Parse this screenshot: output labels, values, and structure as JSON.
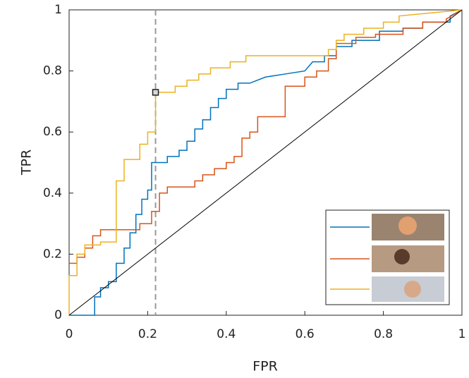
{
  "chart_data": {
    "type": "line",
    "xlabel": "FPR",
    "ylabel": "TPR",
    "xlim": [
      0,
      1
    ],
    "ylim": [
      0,
      1
    ],
    "xticks": [
      0,
      0.2,
      0.4,
      0.6,
      0.8,
      1
    ],
    "yticks": [
      0,
      0.2,
      0.4,
      0.6,
      0.8,
      1
    ],
    "vline": 0.22,
    "marker": {
      "x": 0.22,
      "y": 0.73
    },
    "series": [
      {
        "color": "#0072bd",
        "x": [
          0,
          0.065,
          0.065,
          0.08,
          0.08,
          0.1,
          0.1,
          0.12,
          0.12,
          0.14,
          0.14,
          0.155,
          0.155,
          0.17,
          0.17,
          0.185,
          0.185,
          0.2,
          0.2,
          0.21,
          0.21,
          0.25,
          0.25,
          0.28,
          0.28,
          0.3,
          0.3,
          0.32,
          0.32,
          0.34,
          0.34,
          0.36,
          0.36,
          0.38,
          0.38,
          0.4,
          0.4,
          0.43,
          0.43,
          0.46,
          0.5,
          0.55,
          0.6,
          0.62,
          0.65,
          0.65,
          0.68,
          0.68,
          0.72,
          0.72,
          0.79,
          0.79,
          0.85,
          0.85,
          0.9,
          0.9,
          0.97,
          0.97,
          1
        ],
        "values": [
          0,
          0,
          0.06,
          0.06,
          0.09,
          0.09,
          0.11,
          0.11,
          0.17,
          0.17,
          0.22,
          0.22,
          0.27,
          0.27,
          0.33,
          0.33,
          0.38,
          0.38,
          0.41,
          0.41,
          0.5,
          0.5,
          0.52,
          0.52,
          0.54,
          0.54,
          0.57,
          0.57,
          0.61,
          0.61,
          0.64,
          0.64,
          0.68,
          0.68,
          0.71,
          0.71,
          0.74,
          0.74,
          0.76,
          0.76,
          0.78,
          0.79,
          0.8,
          0.83,
          0.83,
          0.85,
          0.85,
          0.88,
          0.88,
          0.9,
          0.9,
          0.93,
          0.93,
          0.94,
          0.94,
          0.96,
          0.96,
          0.98,
          1
        ]
      },
      {
        "color": "#d95319",
        "x": [
          0,
          0.02,
          0.02,
          0.04,
          0.04,
          0.06,
          0.06,
          0.08,
          0.08,
          0.18,
          0.18,
          0.21,
          0.21,
          0.23,
          0.23,
          0.25,
          0.25,
          0.32,
          0.32,
          0.34,
          0.34,
          0.37,
          0.37,
          0.4,
          0.4,
          0.42,
          0.42,
          0.44,
          0.44,
          0.46,
          0.46,
          0.48,
          0.48,
          0.55,
          0.55,
          0.6,
          0.6,
          0.63,
          0.63,
          0.66,
          0.66,
          0.68,
          0.68,
          0.73,
          0.73,
          0.78,
          0.78,
          0.85,
          0.85,
          0.9,
          0.9,
          0.96,
          0.96,
          1
        ],
        "values": [
          0.17,
          0.17,
          0.19,
          0.19,
          0.22,
          0.22,
          0.26,
          0.26,
          0.28,
          0.28,
          0.3,
          0.3,
          0.34,
          0.34,
          0.4,
          0.4,
          0.42,
          0.42,
          0.44,
          0.44,
          0.46,
          0.46,
          0.48,
          0.48,
          0.5,
          0.5,
          0.52,
          0.52,
          0.58,
          0.58,
          0.6,
          0.6,
          0.65,
          0.65,
          0.75,
          0.75,
          0.78,
          0.78,
          0.8,
          0.8,
          0.84,
          0.84,
          0.89,
          0.89,
          0.91,
          0.91,
          0.92,
          0.92,
          0.94,
          0.94,
          0.96,
          0.96,
          0.97,
          1
        ]
      },
      {
        "color": "#edb120",
        "x": [
          0,
          0,
          0.02,
          0.02,
          0.04,
          0.04,
          0.08,
          0.08,
          0.12,
          0.12,
          0.14,
          0.14,
          0.18,
          0.18,
          0.2,
          0.2,
          0.22,
          0.22,
          0.27,
          0.27,
          0.3,
          0.3,
          0.33,
          0.33,
          0.36,
          0.36,
          0.41,
          0.41,
          0.45,
          0.45,
          0.66,
          0.66,
          0.68,
          0.68,
          0.7,
          0.7,
          0.75,
          0.75,
          0.8,
          0.8,
          0.84,
          0.84,
          1
        ],
        "values": [
          0,
          0.13,
          0.13,
          0.2,
          0.2,
          0.23,
          0.23,
          0.24,
          0.24,
          0.44,
          0.44,
          0.51,
          0.51,
          0.56,
          0.56,
          0.6,
          0.6,
          0.73,
          0.73,
          0.75,
          0.75,
          0.77,
          0.77,
          0.79,
          0.79,
          0.81,
          0.81,
          0.83,
          0.83,
          0.85,
          0.85,
          0.87,
          0.87,
          0.9,
          0.9,
          0.92,
          0.92,
          0.94,
          0.94,
          0.96,
          0.96,
          0.98,
          1
        ]
      },
      {
        "color": "#000000",
        "x": [
          0,
          1
        ],
        "values": [
          0,
          1
        ]
      }
    ]
  }
}
